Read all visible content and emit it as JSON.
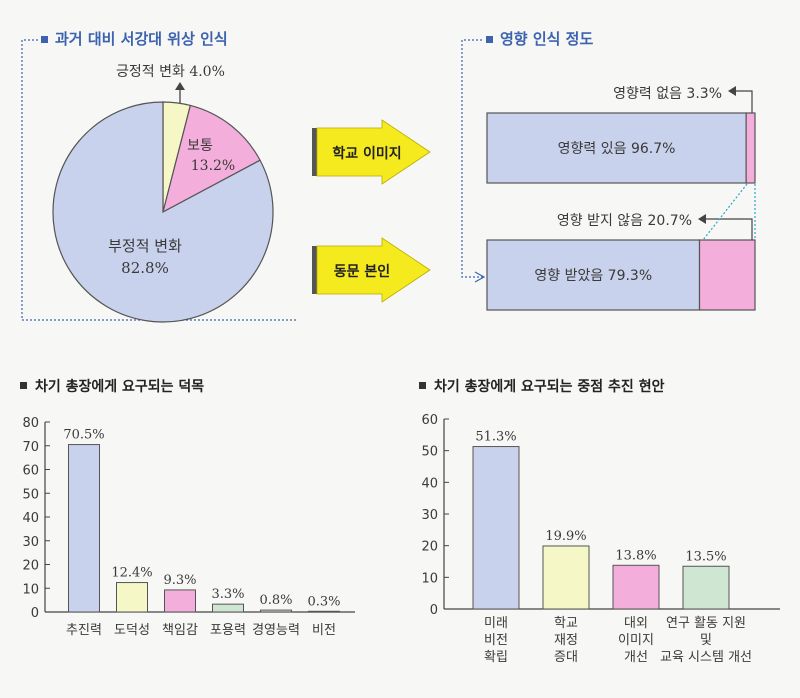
{
  "colors": {
    "blue": "#c9d2ec",
    "yellow": "#f5f7c6",
    "pink": "#f4aedb",
    "green": "#cfe6d3",
    "gray": "#dcdcdc",
    "arrow": "#f5ea1e",
    "title_blue": "#3c63b0"
  },
  "chart_data": [
    {
      "type": "pie",
      "title": "과거 대비 서강대 위상 인식",
      "slices": [
        {
          "label": "긍정적 변화",
          "value": 4.0,
          "value_label": "4.0%",
          "color": "#f5f7c6"
        },
        {
          "label": "보통",
          "value": 13.2,
          "value_label": "13.2%",
          "color": "#f4aedb"
        },
        {
          "label": "부정적 변화",
          "value": 82.8,
          "value_label": "82.8%",
          "color": "#c9d2ec"
        }
      ]
    },
    {
      "type": "bar",
      "orientation": "horizontal-stacked",
      "title": "영향 인식 정도",
      "rows": [
        {
          "arrow_label": "학교 이미지",
          "segments": [
            {
              "label": "영향력 있음 96.7%",
              "value": 96.7,
              "color": "#c9d2ec"
            },
            {
              "label": "영향력 없음 3.3%",
              "value": 3.3,
              "color": "#f4aedb"
            }
          ]
        },
        {
          "arrow_label": "동문 본인",
          "segments": [
            {
              "label": "영향 받았음 79.3%",
              "value": 79.3,
              "color": "#c9d2ec"
            },
            {
              "label": "영향 받지 않음 20.7%",
              "value": 20.7,
              "color": "#f4aedb"
            }
          ]
        }
      ]
    },
    {
      "type": "bar",
      "title": "차기 총장에게 요구되는 덕목",
      "categories": [
        "추진력",
        "도덕성",
        "책임감",
        "포용력",
        "경영능력",
        "비전"
      ],
      "values": [
        70.5,
        12.4,
        9.3,
        3.3,
        0.8,
        0.3
      ],
      "value_labels": [
        "70.5%",
        "12.4%",
        "9.3%",
        "3.3%",
        "0.8%",
        "0.3%"
      ],
      "colors": [
        "#c9d2ec",
        "#f5f7c6",
        "#f4aedb",
        "#cfe6d3",
        "#dcdcdc",
        "#dcdcdc"
      ],
      "ylim": [
        0,
        80
      ],
      "yticks": [
        0,
        10,
        20,
        30,
        40,
        50,
        60,
        70,
        80
      ]
    },
    {
      "type": "bar",
      "title": "차기 총장에게 요구되는 중점 추진 현안",
      "categories": [
        "미래\n비전\n확립",
        "학교\n재정\n증대",
        "대외\n이미지\n개선",
        "연구 활동 지원\n및\n교육 시스템 개선"
      ],
      "values": [
        51.3,
        19.9,
        13.8,
        13.5
      ],
      "value_labels": [
        "51.3%",
        "19.9%",
        "13.8%",
        "13.5%"
      ],
      "colors": [
        "#c9d2ec",
        "#f5f7c6",
        "#f4aedb",
        "#cfe6d3"
      ],
      "ylim": [
        0,
        60
      ],
      "yticks": [
        0,
        10,
        20,
        30,
        40,
        50,
        60
      ]
    }
  ]
}
